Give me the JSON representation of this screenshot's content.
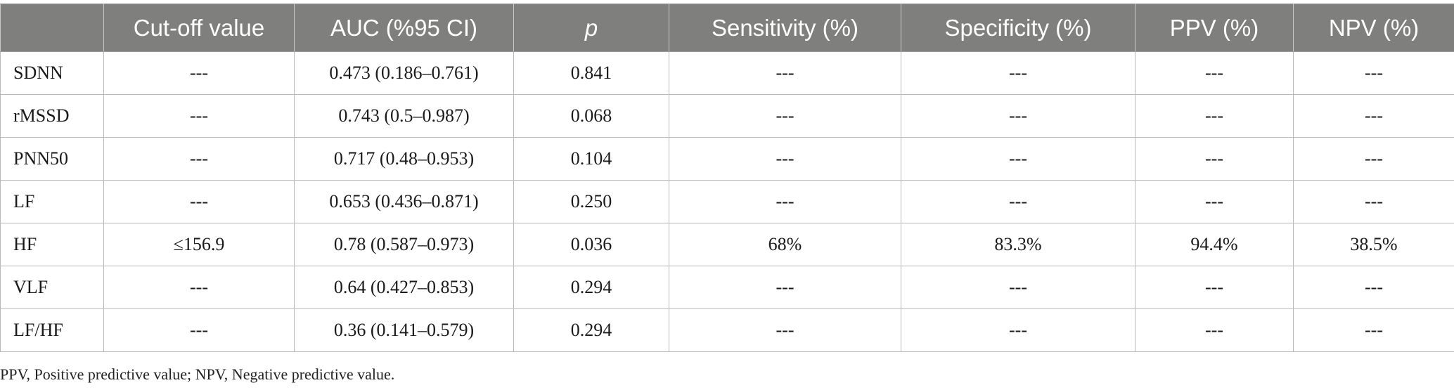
{
  "table": {
    "headers": [
      "",
      "Cut-off value",
      "AUC (%95 CI)",
      "p",
      "Sensitivity (%)",
      "Specificity (%)",
      "PPV (%)",
      "NPV (%)"
    ],
    "rows": [
      [
        "SDNN",
        "---",
        "0.473 (0.186–0.761)",
        "0.841",
        "---",
        "---",
        "---",
        "---"
      ],
      [
        "rMSSD",
        "---",
        "0.743 (0.5–0.987)",
        "0.068",
        "---",
        "---",
        "---",
        "---"
      ],
      [
        "PNN50",
        "---",
        "0.717 (0.48–0.953)",
        "0.104",
        "---",
        "---",
        "---",
        "---"
      ],
      [
        "LF",
        "---",
        "0.653 (0.436–0.871)",
        "0.250",
        "---",
        "---",
        "---",
        "---"
      ],
      [
        "HF",
        "≤156.9",
        "0.78 (0.587–0.973)",
        "0.036",
        "68%",
        "83.3%",
        "94.4%",
        "38.5%"
      ],
      [
        "VLF",
        "---",
        "0.64 (0.427–0.853)",
        "0.294",
        "---",
        "---",
        "---",
        "---"
      ],
      [
        "LF/HF",
        "---",
        "0.36 (0.141–0.579)",
        "0.294",
        "---",
        "---",
        "---",
        "---"
      ]
    ]
  },
  "footnote": "PPV, Positive predictive value; NPV, Negative predictive value.",
  "colors": {
    "header_bg": "#7f7f7d",
    "header_text": "#ffffff",
    "grid": "#b9b9b9"
  }
}
